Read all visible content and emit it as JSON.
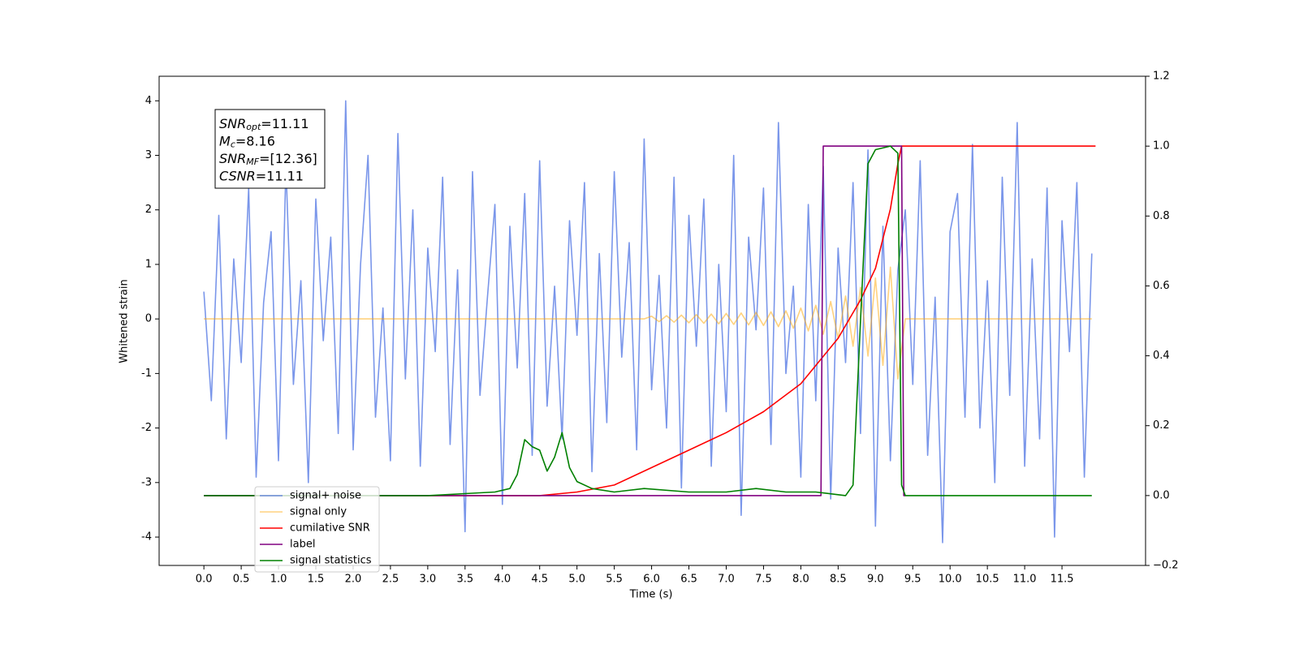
{
  "chart_data": {
    "type": "line",
    "xlabel": "Time (s)",
    "ylabel": "Whitened strain",
    "xlim": [
      -0.6,
      12.62
    ],
    "xticks": [
      {
        "value": 0,
        "label": "0.0"
      },
      {
        "value": 0.5,
        "label": "0.5"
      },
      {
        "value": 1,
        "label": "1.0"
      },
      {
        "value": 1.5,
        "label": "1.5"
      },
      {
        "value": 2,
        "label": "2.0"
      },
      {
        "value": 2.5,
        "label": "2.5"
      },
      {
        "value": 3,
        "label": "3.0"
      },
      {
        "value": 3.5,
        "label": "3.5"
      },
      {
        "value": 4,
        "label": "4.0"
      },
      {
        "value": 4.5,
        "label": "4.5"
      },
      {
        "value": 5,
        "label": "5.0"
      },
      {
        "value": 5.5,
        "label": "5.5"
      },
      {
        "value": 6,
        "label": "6.0"
      },
      {
        "value": 6.5,
        "label": "6.5"
      },
      {
        "value": 7,
        "label": "7.0"
      },
      {
        "value": 7.5,
        "label": "7.5"
      },
      {
        "value": 8,
        "label": "8.0"
      },
      {
        "value": 8.5,
        "label": "8.5"
      },
      {
        "value": 9,
        "label": "9.0"
      },
      {
        "value": 9.5,
        "label": "9.5"
      },
      {
        "value": 10,
        "label": "10.0"
      },
      {
        "value": 10.5,
        "label": "10.5"
      },
      {
        "value": 11,
        "label": "11.0"
      },
      {
        "value": 11.5,
        "label": "11.5"
      }
    ],
    "ylim": [
      -4.52,
      4.45
    ],
    "yticks": [
      -4,
      -3,
      -2,
      -1,
      0,
      1,
      2,
      3,
      4
    ],
    "y2lim": [
      -0.2,
      1.2
    ],
    "y2ticks": [
      {
        "value": -0.2,
        "label": "−0.2"
      },
      {
        "value": 0,
        "label": "0.0"
      },
      {
        "value": 0.2,
        "label": "0.2"
      },
      {
        "value": 0.4,
        "label": "0.4"
      },
      {
        "value": 0.6,
        "label": "0.6"
      },
      {
        "value": 0.8,
        "label": "0.8"
      },
      {
        "value": 1,
        "label": "1.0"
      },
      {
        "value": 1.2,
        "label": "1.2"
      }
    ],
    "legend": "lower left",
    "annotation": [
      {
        "base": "SNR",
        "sub": "opt",
        "rest": "=11.11"
      },
      {
        "base": "M",
        "sub": "c",
        "rest": "=8.16"
      },
      {
        "base": "SNR",
        "sub": "MF",
        "rest": "=[12.36]"
      },
      {
        "base": "CSNR",
        "sub": "",
        "rest": "=11.11"
      }
    ],
    "x": [
      0,
      0.1,
      0.2,
      0.3,
      0.4,
      0.5,
      0.6,
      0.7,
      0.8,
      0.9,
      1,
      1.1,
      1.2,
      1.3,
      1.4,
      1.5,
      1.6,
      1.7,
      1.8,
      1.9,
      2,
      2.1,
      2.2,
      2.3,
      2.4,
      2.5,
      2.6,
      2.7,
      2.8,
      2.9,
      3,
      3.1,
      3.2,
      3.3,
      3.4,
      3.5,
      3.6,
      3.7,
      3.8,
      3.9,
      4,
      4.1,
      4.2,
      4.3,
      4.4,
      4.5,
      4.6,
      4.7,
      4.8,
      4.9,
      5,
      5.1,
      5.2,
      5.3,
      5.4,
      5.5,
      5.6,
      5.7,
      5.8,
      5.9,
      6,
      6.1,
      6.2,
      6.3,
      6.4,
      6.5,
      6.6,
      6.7,
      6.8,
      6.9,
      7,
      7.1,
      7.2,
      7.3,
      7.4,
      7.5,
      7.6,
      7.7,
      7.8,
      7.9,
      8,
      8.1,
      8.2,
      8.3,
      8.4,
      8.5,
      8.6,
      8.7,
      8.8,
      8.9,
      9,
      9.1,
      9.2,
      9.3,
      9.4,
      9.5,
      9.6,
      9.7,
      9.8,
      9.9,
      10,
      10.1,
      10.2,
      10.3,
      10.4,
      10.5,
      10.6,
      10.7,
      10.8,
      10.9,
      11,
      11.1,
      11.2,
      11.3,
      11.4,
      11.5,
      11.6,
      11.7,
      11.8,
      11.9
    ],
    "series": [
      {
        "name": "signal+ noise",
        "color": "#4169e1",
        "opacity": 0.7,
        "axis": "y",
        "values": [
          0.5,
          -1.5,
          1.9,
          -2.2,
          1.1,
          -0.8,
          2.4,
          -2.9,
          0.3,
          1.6,
          -2.6,
          2.8,
          -1.2,
          0.7,
          -3.0,
          2.2,
          -0.4,
          1.5,
          -2.1,
          4.0,
          -2.4,
          1.0,
          3.0,
          -1.8,
          0.2,
          -2.6,
          3.4,
          -1.1,
          2.0,
          -2.7,
          1.3,
          -0.6,
          2.6,
          -2.3,
          0.9,
          -3.9,
          2.7,
          -1.4,
          0.4,
          2.1,
          -3.4,
          1.7,
          -0.9,
          2.3,
          -2.5,
          2.9,
          -1.6,
          0.6,
          -2.2,
          1.8,
          -0.3,
          2.5,
          -2.8,
          1.2,
          -1.9,
          2.7,
          -0.7,
          1.4,
          -2.4,
          3.3,
          -1.3,
          0.8,
          -2.0,
          2.6,
          -3.1,
          1.9,
          -0.5,
          2.2,
          -2.7,
          1.0,
          -1.7,
          3.0,
          -3.6,
          1.5,
          -0.2,
          2.4,
          -2.3,
          3.6,
          -1.0,
          0.6,
          -2.9,
          2.1,
          -1.5,
          2.8,
          -3.3,
          1.3,
          -0.8,
          2.5,
          -2.1,
          3.1,
          -3.8,
          1.7,
          -2.6,
          0.9,
          2.0,
          -1.2,
          2.9,
          -2.5,
          0.4,
          -4.1,
          1.6,
          2.3,
          -1.8,
          3.2,
          -2.0,
          0.7,
          -3.0,
          2.6,
          -1.4,
          3.6,
          -2.7,
          1.1,
          -2.2,
          2.4,
          -4.0,
          1.8,
          -0.6,
          2.5,
          -2.9,
          1.2
        ]
      },
      {
        "name": "signal only",
        "color": "#ffa500",
        "opacity": 0.5,
        "axis": "y",
        "values": [
          0,
          0,
          0,
          0,
          0,
          0,
          0,
          0,
          0,
          0,
          0,
          0,
          0,
          0,
          0,
          0,
          0,
          0,
          0,
          0,
          0,
          0,
          0,
          0,
          0,
          0,
          0,
          0,
          0,
          0,
          0,
          0,
          0,
          0,
          0,
          0,
          0,
          0,
          0,
          0,
          0,
          0,
          0,
          0,
          0,
          0,
          0,
          0,
          0,
          0,
          0,
          0,
          0,
          0,
          0,
          0,
          0,
          0,
          0,
          0,
          0.05,
          -0.05,
          0.06,
          -0.06,
          0.07,
          -0.07,
          0.08,
          -0.08,
          0.09,
          -0.09,
          0.1,
          -0.1,
          0.11,
          -0.11,
          0.12,
          -0.12,
          0.13,
          -0.14,
          0.15,
          -0.17,
          0.2,
          -0.22,
          0.25,
          -0.28,
          0.32,
          -0.36,
          0.42,
          -0.5,
          0.58,
          -0.68,
          0.75,
          -0.85,
          0.95,
          -1.1,
          0,
          0,
          0,
          0,
          0,
          0,
          0,
          0,
          0,
          0,
          0,
          0,
          0,
          0,
          0,
          0,
          0,
          0,
          0,
          0,
          0,
          0,
          0,
          0,
          0,
          0
        ]
      },
      {
        "name": "cumilative SNR",
        "color": "#ff0000",
        "opacity": 1,
        "axis": "y2",
        "x": [
          0,
          4.5,
          5,
          5.5,
          6,
          6.5,
          7,
          7.5,
          8,
          8.5,
          8.8,
          9,
          9.2,
          9.3,
          9.35,
          11.95
        ],
        "values": [
          0,
          0,
          0.01,
          0.03,
          0.08,
          0.13,
          0.18,
          0.24,
          0.32,
          0.45,
          0.56,
          0.65,
          0.82,
          0.95,
          1,
          1
        ]
      },
      {
        "name": "label",
        "color": "#800080",
        "opacity": 1,
        "axis": "y2",
        "x": [
          0,
          8.27,
          8.3,
          9.35,
          9.38,
          9.4
        ],
        "values": [
          0,
          0,
          1,
          1,
          0,
          0
        ]
      },
      {
        "name": "signal statistics",
        "color": "#008000",
        "opacity": 1,
        "axis": "y2",
        "x": [
          0,
          3,
          3.9,
          4.1,
          4.2,
          4.3,
          4.4,
          4.5,
          4.6,
          4.7,
          4.8,
          4.9,
          5,
          5.2,
          5.5,
          5.9,
          6.5,
          7,
          7.4,
          7.8,
          8.2,
          8.6,
          8.7,
          8.8,
          8.9,
          9,
          9.2,
          9.3,
          9.35,
          9.4,
          11.9
        ],
        "values": [
          0,
          0,
          0.01,
          0.02,
          0.06,
          0.16,
          0.14,
          0.13,
          0.07,
          0.11,
          0.18,
          0.08,
          0.04,
          0.02,
          0.01,
          0.02,
          0.01,
          0.01,
          0.02,
          0.01,
          0.01,
          0,
          0.03,
          0.5,
          0.95,
          0.99,
          1,
          0.98,
          0.03,
          0,
          0
        ]
      }
    ]
  }
}
